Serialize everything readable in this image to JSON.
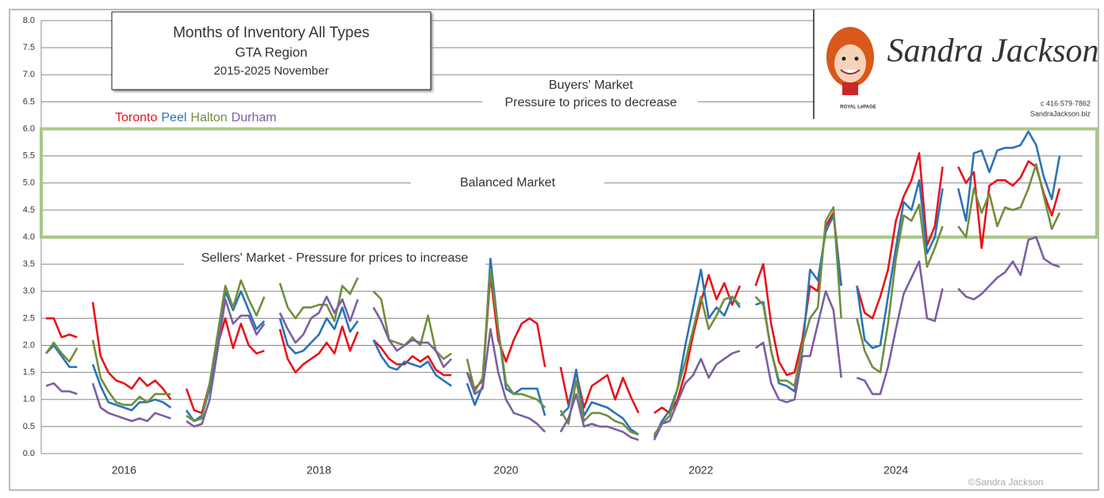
{
  "chart_data": {
    "type": "line",
    "title": "Months of Inventory  All Types",
    "subtitle": [
      "GTA Region",
      "2015-2025 November"
    ],
    "categories": [
      null,
      null,
      null,
      null,
      null,
      null,
      null,
      null,
      null,
      null,
      "2016",
      null,
      null,
      null,
      null,
      null,
      null,
      null,
      null,
      null,
      null,
      null,
      null,
      null,
      null,
      null,
      null,
      null,
      null,
      null,
      null,
      null,
      null,
      null,
      null,
      "2018",
      null,
      null,
      null,
      null,
      null,
      null,
      null,
      null,
      null,
      null,
      null,
      null,
      null,
      null,
      null,
      null,
      null,
      null,
      null,
      null,
      null,
      null,
      null,
      "2020",
      null,
      null,
      null,
      null,
      null,
      null,
      null,
      null,
      null,
      null,
      null,
      null,
      null,
      null,
      null,
      null,
      null,
      null,
      null,
      null,
      null,
      null,
      null,
      null,
      "2022",
      null,
      null,
      null,
      null,
      null,
      null,
      null,
      null,
      null,
      null,
      null,
      null,
      null,
      null,
      null,
      null,
      null,
      null,
      null,
      null,
      null,
      null,
      null,
      null,
      "2024",
      null,
      null,
      null,
      null,
      null,
      null,
      null,
      null,
      null,
      null,
      null,
      null,
      null,
      null,
      null,
      null,
      null,
      null,
      null,
      null,
      null
    ],
    "series": [
      {
        "name": "Toronto",
        "color": "#e8141b",
        "values": [
          2.5,
          2.5,
          2.15,
          2.2,
          2.15,
          null,
          2.8,
          1.8,
          1.5,
          1.35,
          1.3,
          1.2,
          1.4,
          1.25,
          1.35,
          1.2,
          1.0,
          null,
          1.2,
          0.8,
          0.75,
          1.3,
          2.0,
          2.5,
          1.95,
          2.4,
          2.0,
          1.85,
          1.9,
          null,
          2.3,
          1.75,
          1.5,
          1.65,
          1.75,
          1.85,
          2.05,
          1.85,
          2.35,
          1.9,
          2.25,
          null,
          2.1,
          1.95,
          1.75,
          1.65,
          1.65,
          1.8,
          1.7,
          1.8,
          1.55,
          1.45,
          1.45,
          null,
          1.5,
          1.2,
          1.35,
          3.3,
          2.1,
          1.7,
          2.1,
          2.4,
          2.5,
          2.4,
          1.6,
          null,
          1.6,
          0.9,
          1.5,
          0.85,
          1.25,
          1.35,
          1.45,
          1.0,
          1.4,
          1.05,
          0.75,
          null,
          0.75,
          0.85,
          0.75,
          1.0,
          1.5,
          2.2,
          2.8,
          3.3,
          2.85,
          3.15,
          2.75,
          3.1,
          null,
          3.1,
          3.5,
          2.4,
          1.7,
          1.45,
          1.5,
          2.1,
          3.1,
          3.0,
          4.2,
          4.45,
          3.1,
          null,
          3.1,
          2.6,
          2.5,
          2.9,
          3.4,
          4.3,
          4.75,
          5.05,
          5.55,
          3.85,
          4.2,
          5.3,
          null,
          5.3,
          5.0,
          5.2,
          3.8,
          4.95,
          5.05,
          5.05,
          4.95,
          5.1,
          5.4,
          5.3,
          4.8,
          4.4,
          4.9
        ]
      },
      {
        "name": "Peel",
        "color": "#2a73b8",
        "values": [
          1.85,
          2.0,
          1.8,
          1.6,
          1.6,
          null,
          1.65,
          1.25,
          0.95,
          0.9,
          0.85,
          0.8,
          0.95,
          0.95,
          1.0,
          0.95,
          0.85,
          null,
          0.8,
          0.6,
          0.7,
          1.2,
          2.0,
          3.0,
          2.65,
          3.0,
          2.65,
          2.3,
          2.45,
          null,
          2.5,
          2.0,
          1.85,
          1.9,
          2.05,
          2.2,
          2.5,
          2.3,
          2.7,
          2.25,
          2.45,
          null,
          2.1,
          1.8,
          1.6,
          1.55,
          1.7,
          1.65,
          1.6,
          1.7,
          1.45,
          1.35,
          1.25,
          null,
          1.3,
          0.9,
          1.25,
          3.6,
          2.3,
          1.2,
          1.1,
          1.2,
          1.2,
          1.2,
          0.7,
          null,
          0.7,
          0.85,
          1.55,
          0.7,
          0.95,
          0.9,
          0.85,
          0.75,
          0.65,
          0.45,
          0.35,
          null,
          0.3,
          0.6,
          0.8,
          1.2,
          2.0,
          2.7,
          3.4,
          2.5,
          2.7,
          2.55,
          2.9,
          2.7,
          null,
          2.75,
          2.8,
          1.9,
          1.3,
          1.25,
          1.15,
          1.9,
          3.4,
          3.2,
          4.1,
          4.4,
          3.1,
          null,
          3.1,
          2.1,
          1.95,
          2.0,
          2.9,
          3.8,
          4.65,
          4.5,
          5.05,
          3.7,
          4.0,
          4.9,
          null,
          4.9,
          4.3,
          5.55,
          5.6,
          5.2,
          5.6,
          5.65,
          5.65,
          5.7,
          5.95,
          5.7,
          5.1,
          4.7,
          5.5
        ]
      },
      {
        "name": "Halton",
        "color": "#6f8f3c",
        "values": [
          1.85,
          2.05,
          1.85,
          1.7,
          1.95,
          null,
          2.1,
          1.4,
          1.15,
          0.95,
          0.9,
          0.9,
          1.05,
          0.95,
          1.1,
          1.1,
          1.1,
          null,
          0.7,
          0.6,
          0.65,
          1.3,
          2.2,
          3.1,
          2.7,
          3.2,
          2.85,
          2.55,
          2.9,
          null,
          3.15,
          2.7,
          2.5,
          2.7,
          2.7,
          2.75,
          2.75,
          2.45,
          3.1,
          2.95,
          3.25,
          null,
          3.0,
          2.85,
          2.1,
          2.05,
          2.0,
          2.15,
          2.0,
          2.55,
          1.9,
          1.75,
          1.85,
          null,
          1.75,
          1.15,
          1.4,
          3.4,
          2.3,
          1.3,
          1.1,
          1.1,
          1.05,
          1.0,
          0.85,
          null,
          0.8,
          0.55,
          1.35,
          0.6,
          0.75,
          0.75,
          0.7,
          0.6,
          0.55,
          0.4,
          0.35,
          null,
          0.35,
          0.55,
          0.7,
          1.2,
          1.7,
          2.3,
          2.9,
          2.3,
          2.55,
          2.85,
          2.9,
          2.75,
          null,
          2.9,
          2.75,
          1.9,
          1.35,
          1.35,
          1.25,
          2.0,
          2.5,
          2.7,
          4.3,
          4.55,
          2.5,
          null,
          2.5,
          1.9,
          1.6,
          1.5,
          2.4,
          3.6,
          4.4,
          4.3,
          4.6,
          3.45,
          3.8,
          4.2,
          null,
          4.2,
          4.0,
          4.9,
          4.45,
          4.8,
          4.2,
          4.55,
          4.5,
          4.55,
          4.9,
          5.35,
          4.75,
          4.15,
          4.45
        ]
      },
      {
        "name": "Durham",
        "color": "#7c5fa2",
        "values": [
          1.25,
          1.3,
          1.15,
          1.15,
          1.1,
          null,
          1.3,
          0.85,
          0.75,
          0.7,
          0.65,
          0.6,
          0.65,
          0.6,
          0.75,
          0.7,
          0.65,
          null,
          0.6,
          0.5,
          0.55,
          1.0,
          1.9,
          2.85,
          2.4,
          2.55,
          2.55,
          2.2,
          2.4,
          null,
          2.6,
          2.3,
          2.05,
          2.2,
          2.5,
          2.6,
          2.9,
          2.6,
          2.85,
          2.45,
          2.85,
          null,
          2.7,
          2.45,
          2.1,
          1.9,
          2.0,
          2.1,
          2.05,
          2.05,
          1.9,
          1.6,
          1.75,
          null,
          1.5,
          1.1,
          1.2,
          2.3,
          1.5,
          1.0,
          0.75,
          0.7,
          0.65,
          0.55,
          0.4,
          null,
          0.4,
          0.65,
          1.1,
          0.5,
          0.55,
          0.5,
          0.5,
          0.45,
          0.4,
          0.3,
          0.25,
          null,
          0.25,
          0.55,
          0.6,
          0.95,
          1.3,
          1.45,
          1.75,
          1.4,
          1.65,
          1.75,
          1.85,
          1.9,
          null,
          1.95,
          2.05,
          1.3,
          1.0,
          0.95,
          1.0,
          1.8,
          1.8,
          2.4,
          3.0,
          2.65,
          1.4,
          null,
          1.4,
          1.35,
          1.1,
          1.1,
          1.6,
          2.3,
          2.95,
          3.25,
          3.55,
          2.5,
          2.45,
          3.05,
          null,
          3.05,
          2.9,
          2.85,
          2.95,
          3.1,
          3.25,
          3.35,
          3.55,
          3.3,
          3.95,
          4.0,
          3.6,
          3.5,
          3.45
        ]
      }
    ],
    "ylim": [
      0,
      8
    ],
    "yticks": [
      {
        "value": 0,
        "label": "0.0"
      },
      {
        "value": 0.5,
        "label": "0.5"
      },
      {
        "value": 1,
        "label": "1.0"
      },
      {
        "value": 1.5,
        "label": "1.5"
      },
      {
        "value": 2,
        "label": "2.0"
      },
      {
        "value": 2.5,
        "label": "2.5"
      },
      {
        "value": 3,
        "label": "3.0"
      },
      {
        "value": 3.5,
        "label": "3.5"
      },
      {
        "value": 4,
        "label": "4.0"
      },
      {
        "value": 4.5,
        "label": "4.5"
      },
      {
        "value": 5,
        "label": "5.0"
      },
      {
        "value": 5.5,
        "label": "5.5"
      },
      {
        "value": 6,
        "label": "6.0"
      },
      {
        "value": 6.5,
        "label": "6.5"
      },
      {
        "value": 7,
        "label": "7.0"
      },
      {
        "value": 7.5,
        "label": "7.5"
      },
      {
        "value": 8,
        "label": "8.0"
      }
    ],
    "grid": true,
    "band": {
      "from": 4,
      "to": 6,
      "color": "#a9c88a"
    },
    "annotations": [
      "Buyers' Market",
      "Pressure to prices to decrease",
      "Balanced Market",
      "Sellers' Market - Pressure for prices to increase"
    ]
  },
  "branding": {
    "name": "Sandra Jackson",
    "phone": "c 416·579·7862",
    "website": "SandraJackson.biz",
    "brokerage": "ROYAL LePAGE"
  },
  "copyright": "©Sandra Jackson"
}
